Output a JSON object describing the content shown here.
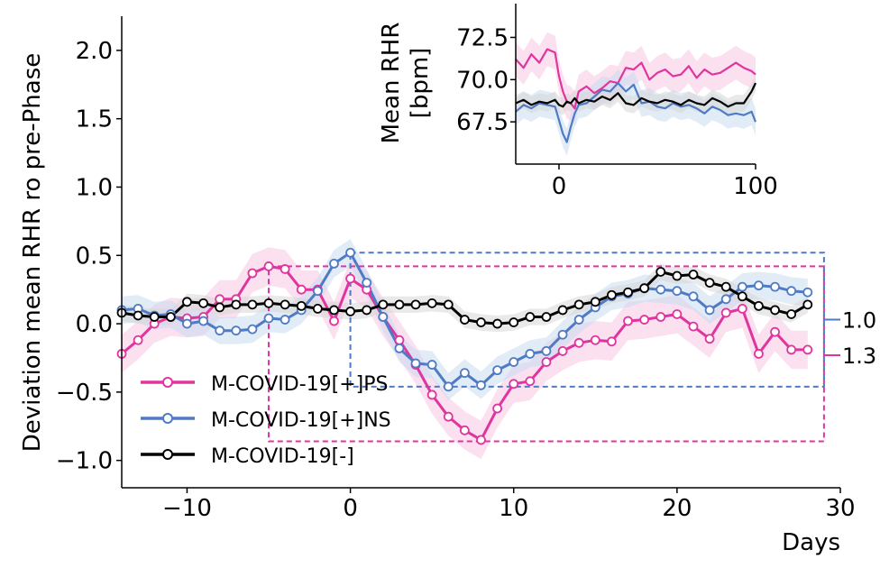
{
  "chart_data": [
    {
      "type": "line",
      "xlabel": "Days",
      "ylabel": "Deviation mean RHR ro pre-Phase",
      "xlim": [
        -14,
        30
      ],
      "ylim": [
        -1.2,
        2.25
      ],
      "x_ticks": [
        -10,
        0,
        10,
        20,
        30
      ],
      "x_tick_labels": [
        "−10",
        "0",
        "10",
        "20",
        "30"
      ],
      "y_ticks": [
        -1.0,
        -0.5,
        0.0,
        0.5,
        1.0,
        1.5,
        2.0
      ],
      "y_tick_labels": [
        "−1.0",
        "−0.5",
        "0.0",
        "0.5",
        "1.0",
        "1.5",
        "2.0"
      ],
      "legend_position": "lower-left",
      "x": [
        -14,
        -13,
        -12,
        -11,
        -10,
        -9,
        -8,
        -7,
        -6,
        -5,
        -4,
        -3,
        -2,
        -1,
        0,
        1,
        2,
        3,
        4,
        5,
        6,
        7,
        8,
        9,
        10,
        11,
        12,
        13,
        14,
        15,
        16,
        17,
        18,
        19,
        20,
        21,
        22,
        23,
        24,
        25,
        26,
        27,
        28
      ],
      "series": [
        {
          "name": "M-COVID-19[+]PS",
          "color": "#e0359e",
          "band": "#f7c6e4",
          "values": [
            -0.22,
            -0.12,
            0.0,
            0.05,
            0.04,
            0.05,
            0.18,
            0.18,
            0.37,
            0.42,
            0.4,
            0.25,
            0.25,
            0.02,
            0.33,
            0.25,
            0.05,
            -0.12,
            -0.3,
            -0.52,
            -0.68,
            -0.78,
            -0.85,
            -0.62,
            -0.44,
            -0.42,
            -0.28,
            -0.2,
            -0.14,
            -0.12,
            -0.13,
            0.02,
            0.03,
            0.05,
            0.07,
            -0.02,
            -0.11,
            0.08,
            0.11,
            -0.22,
            -0.06,
            -0.19,
            -0.19
          ],
          "band_half_width": 0.14
        },
        {
          "name": "M-COVID-19[+]NS",
          "color": "#4f7ac4",
          "band": "#c9dcf1",
          "values": [
            0.1,
            0.11,
            0.06,
            0.07,
            0.0,
            0.02,
            -0.05,
            -0.05,
            -0.04,
            0.04,
            0.03,
            0.1,
            0.24,
            0.44,
            0.52,
            0.3,
            0.05,
            -0.18,
            -0.29,
            -0.3,
            -0.46,
            -0.36,
            -0.45,
            -0.34,
            -0.28,
            -0.22,
            -0.2,
            -0.08,
            0.03,
            0.12,
            0.2,
            0.22,
            0.26,
            0.25,
            0.24,
            0.2,
            0.1,
            0.18,
            0.27,
            0.28,
            0.27,
            0.24,
            0.23
          ],
          "band_half_width": 0.1
        },
        {
          "name": "M-COVID-19[-]",
          "color": "#000000",
          "band": "#d7d7d7",
          "values": [
            0.08,
            0.06,
            0.05,
            0.05,
            0.16,
            0.15,
            0.12,
            0.14,
            0.14,
            0.15,
            0.14,
            0.13,
            0.11,
            0.1,
            0.09,
            0.1,
            0.14,
            0.14,
            0.14,
            0.15,
            0.14,
            0.03,
            0.01,
            0.0,
            0.01,
            0.05,
            0.05,
            0.1,
            0.14,
            0.16,
            0.21,
            0.23,
            0.26,
            0.38,
            0.35,
            0.36,
            0.3,
            0.27,
            0.2,
            0.13,
            0.1,
            0.07,
            0.14
          ],
          "band_half_width": 0.06
        }
      ],
      "annotation_boxes": [
        {
          "color": "#e0359e",
          "x_from": -5,
          "x_to": 29,
          "y_top": 0.42,
          "y_bottom": -0.86
        },
        {
          "color": "#4f7ac4",
          "x_from": 0,
          "x_to": 29,
          "y_top": 0.52,
          "y_bottom": -0.46
        }
      ],
      "side_labels": [
        {
          "text": "1.0",
          "color": "#4f7ac4",
          "y": 0.03
        },
        {
          "text": "1.3",
          "color": "#e0359e",
          "y": -0.23
        }
      ]
    },
    {
      "type": "line",
      "ylabel": "Mean RHR\n[bpm]",
      "xlim": [
        -22,
        100
      ],
      "ylim": [
        65.0,
        74.5
      ],
      "x_ticks": [
        0,
        100
      ],
      "x_tick_labels": [
        "0",
        "100"
      ],
      "y_ticks": [
        67.5,
        70.0,
        72.5
      ],
      "y_tick_labels": [
        "67.5",
        "70.0",
        "72.5"
      ],
      "series": [
        {
          "name": "M-COVID-19[+]PS",
          "color": "#e0359e",
          "band": "#f7c6e4",
          "x": [
            -22,
            -18,
            -14,
            -10,
            -6,
            -2,
            0,
            2,
            4,
            6,
            8,
            10,
            14,
            18,
            22,
            26,
            30,
            34,
            38,
            42,
            46,
            50,
            54,
            58,
            62,
            66,
            70,
            74,
            78,
            82,
            86,
            90,
            94,
            98,
            100
          ],
          "values": [
            71.2,
            70.7,
            71.5,
            71.0,
            71.8,
            71.6,
            70.2,
            69.3,
            68.7,
            68.6,
            68.3,
            69.3,
            69.6,
            69.2,
            69.5,
            69.9,
            69.8,
            70.7,
            70.6,
            71.0,
            70.0,
            70.4,
            70.6,
            70.2,
            70.3,
            70.8,
            70.1,
            70.6,
            70.3,
            70.4,
            70.7,
            71.0,
            70.7,
            70.5,
            70.3
          ],
          "band_half_width": 1.0
        },
        {
          "name": "M-COVID-19[+]NS",
          "color": "#4f7ac4",
          "band": "#c9dcf1",
          "x": [
            -22,
            -18,
            -14,
            -10,
            -6,
            -2,
            0,
            2,
            4,
            6,
            8,
            10,
            14,
            18,
            22,
            26,
            30,
            34,
            38,
            42,
            46,
            50,
            54,
            58,
            62,
            66,
            70,
            74,
            78,
            82,
            86,
            90,
            94,
            98,
            100
          ],
          "values": [
            68.1,
            68.5,
            68.3,
            68.6,
            68.5,
            68.4,
            67.6,
            66.8,
            66.3,
            67.2,
            68.0,
            68.5,
            68.6,
            69.0,
            69.4,
            69.3,
            69.8,
            69.3,
            69.7,
            68.6,
            68.7,
            68.4,
            68.3,
            68.6,
            68.4,
            68.5,
            68.3,
            68.0,
            68.4,
            68.2,
            67.9,
            68.0,
            67.9,
            68.1,
            67.5
          ],
          "band_half_width": 0.8
        },
        {
          "name": "M-COVID-19[-]",
          "color": "#000000",
          "band": "#d7d7d7",
          "x": [
            -22,
            -18,
            -14,
            -10,
            -6,
            -2,
            0,
            2,
            4,
            6,
            8,
            10,
            14,
            18,
            22,
            26,
            30,
            34,
            38,
            42,
            46,
            50,
            54,
            58,
            62,
            66,
            70,
            74,
            78,
            82,
            86,
            90,
            94,
            98,
            100
          ],
          "values": [
            68.6,
            68.8,
            68.5,
            68.7,
            68.6,
            68.8,
            68.5,
            68.4,
            68.7,
            68.6,
            68.9,
            68.6,
            68.8,
            68.7,
            69.0,
            68.8,
            69.2,
            68.6,
            68.5,
            68.9,
            68.7,
            68.6,
            68.8,
            68.7,
            68.5,
            68.8,
            68.6,
            68.5,
            68.9,
            68.7,
            68.4,
            68.6,
            68.6,
            69.3,
            69.8
          ],
          "band_half_width": 0.5
        }
      ]
    }
  ]
}
